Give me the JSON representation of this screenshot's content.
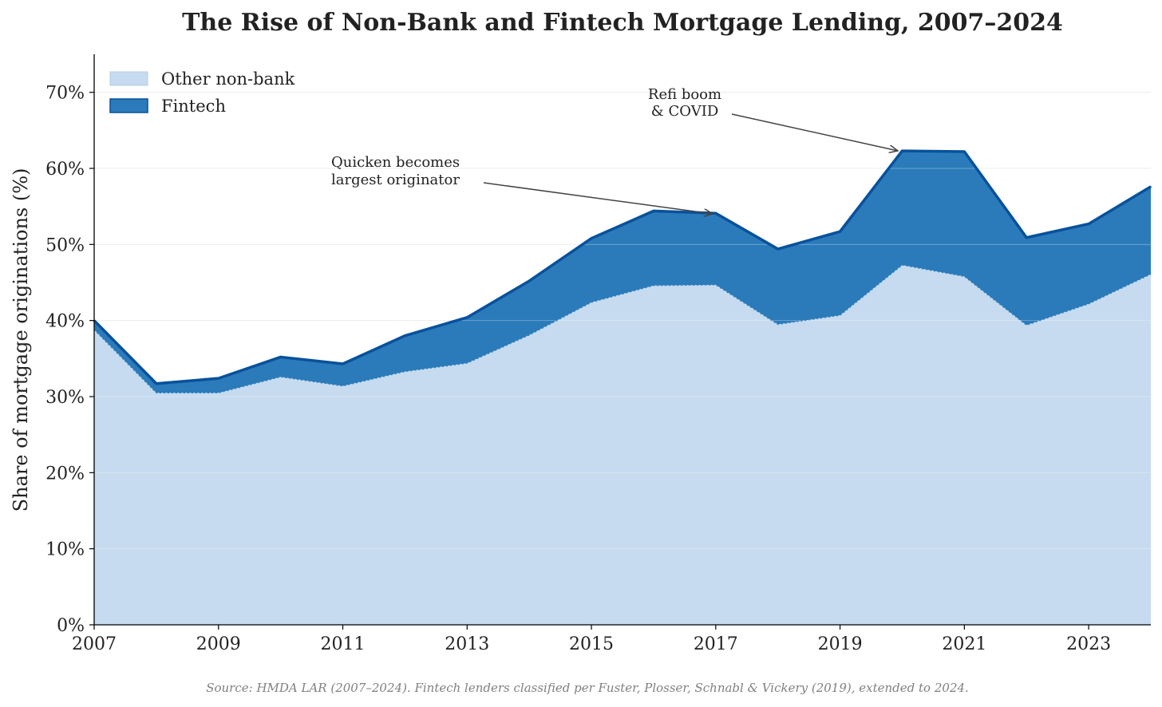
{
  "chart_data": {
    "type": "area",
    "title": "The Rise of Non-Bank and Fintech Mortgage Lending, 2007–2024",
    "xlabel": "",
    "ylabel": "Share of mortgage originations (%)",
    "x": [
      2007,
      2008,
      2009,
      2010,
      2011,
      2012,
      2013,
      2014,
      2015,
      2016,
      2017,
      2018,
      2019,
      2020,
      2021,
      2022,
      2023,
      2024
    ],
    "xlim": [
      2007,
      2024
    ],
    "ylim": [
      0,
      75
    ],
    "x_ticks": [
      2007,
      2009,
      2011,
      2013,
      2015,
      2017,
      2019,
      2021,
      2023
    ],
    "x_tick_labels": [
      "2007",
      "2009",
      "2011",
      "2013",
      "2015",
      "2017",
      "2019",
      "2021",
      "2023"
    ],
    "y_ticks": [
      0,
      10,
      20,
      30,
      40,
      50,
      60,
      70
    ],
    "y_tick_labels": [
      "0%",
      "10%",
      "20%",
      "30%",
      "40%",
      "50%",
      "60%",
      "70%"
    ],
    "stacked": true,
    "grid": "horizontal",
    "legend_position": "top-left",
    "series": [
      {
        "name": "Other non-bank",
        "color": "#c6dbef",
        "values": [
          38.8,
          30.5,
          30.5,
          32.6,
          31.4,
          33.3,
          34.4,
          38.1,
          42.4,
          44.6,
          44.7,
          39.5,
          40.7,
          47.3,
          45.8,
          39.4,
          42.2,
          46.1
        ]
      },
      {
        "name": "Fintech",
        "color": "#2b7bba",
        "values": [
          1.2,
          1.2,
          1.9,
          2.6,
          2.9,
          4.7,
          6.0,
          7.1,
          8.4,
          9.8,
          9.4,
          9.9,
          11.0,
          15.0,
          16.4,
          11.5,
          10.5,
          11.5
        ]
      }
    ],
    "total_line_color": "#08519c",
    "annotations": [
      {
        "lines": [
          "Quicken becomes",
          "largest originator"
        ],
        "x": 2017,
        "y": 54.1
      },
      {
        "lines": [
          "Refi boom",
          "& COVID"
        ],
        "x": 2020,
        "y": 62.3
      }
    ],
    "source": "Source: HMDA LAR (2007–2024). Fintech lenders classified per Fuster, Plosser, Schnabl & Vickery (2019), extended to 2024."
  }
}
